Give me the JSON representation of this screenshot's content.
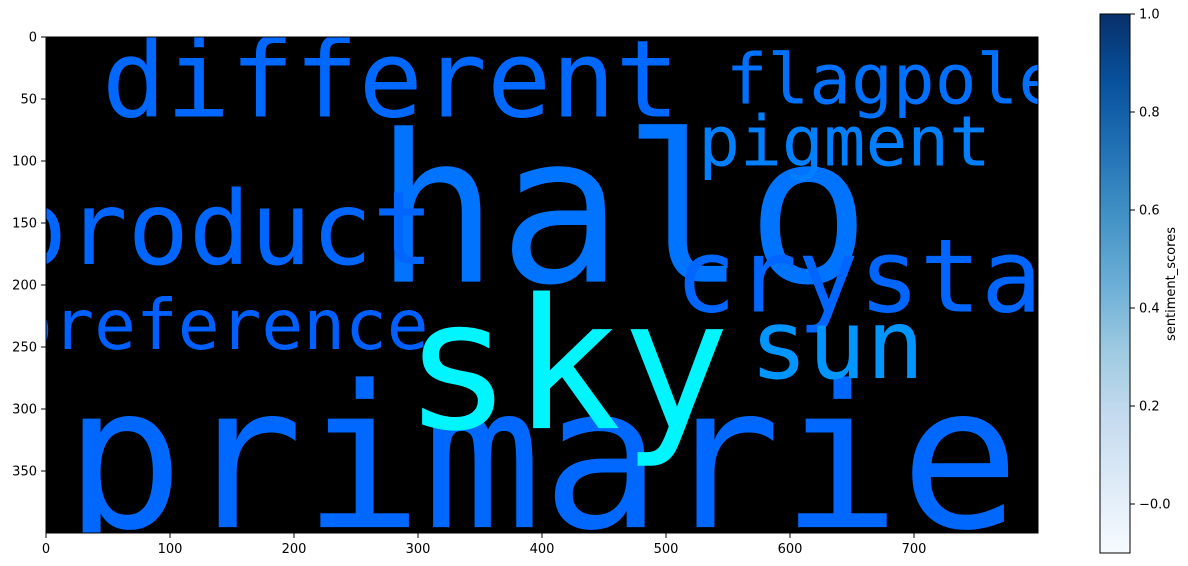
{
  "chart_data": {
    "type": "wordcloud",
    "x_ticks": [
      "0",
      "100",
      "200",
      "300",
      "400",
      "500",
      "600",
      "700"
    ],
    "y_ticks": [
      "0",
      "50",
      "100",
      "150",
      "200",
      "250",
      "300",
      "350"
    ],
    "xlim": [
      0,
      800
    ],
    "ylim": [
      400,
      0
    ],
    "background": "#000000",
    "words": [
      {
        "text": "halo",
        "x": 465,
        "y": 140,
        "size": 166,
        "color": "#0073ff"
      },
      {
        "text": "primarie",
        "x": 400,
        "y": 340,
        "size": 160,
        "color": "#0068ff"
      },
      {
        "text": "sky",
        "x": 420,
        "y": 265,
        "size": 146,
        "color": "#00f5ff"
      },
      {
        "text": "different",
        "x": 278,
        "y": 35,
        "size": 86,
        "color": "#0068ff"
      },
      {
        "text": "product",
        "x": 140,
        "y": 155,
        "size": 82,
        "color": "#0066ff"
      },
      {
        "text": "crystal",
        "x": 680,
        "y": 193,
        "size": 82,
        "color": "#0066ff"
      },
      {
        "text": "sun",
        "x": 638,
        "y": 248,
        "size": 78,
        "color": "#0095ff"
      },
      {
        "text": "preference",
        "x": 140,
        "y": 233,
        "size": 56,
        "color": "#0060ff"
      },
      {
        "text": "flagpole",
        "x": 683,
        "y": 35,
        "size": 56,
        "color": "#0070ff"
      },
      {
        "text": "pigment",
        "x": 644,
        "y": 85,
        "size": 56,
        "color": "#0080ff"
      }
    ],
    "colorbar": {
      "label": "sentiment_scores",
      "ticks": [
        "−0.0",
        "0.2",
        "0.4",
        "0.6",
        "0.8",
        "1.0"
      ],
      "tick_values": [
        0.0,
        0.2,
        0.4,
        0.6,
        0.8,
        1.0
      ],
      "range": [
        -0.1,
        1.0
      ],
      "colormap": "Blues",
      "colors": [
        "#f7fbff",
        "#deebf7",
        "#c6dbef",
        "#9ecae1",
        "#6baed6",
        "#4292c6",
        "#2171b5",
        "#08519c",
        "#08306b"
      ]
    }
  }
}
